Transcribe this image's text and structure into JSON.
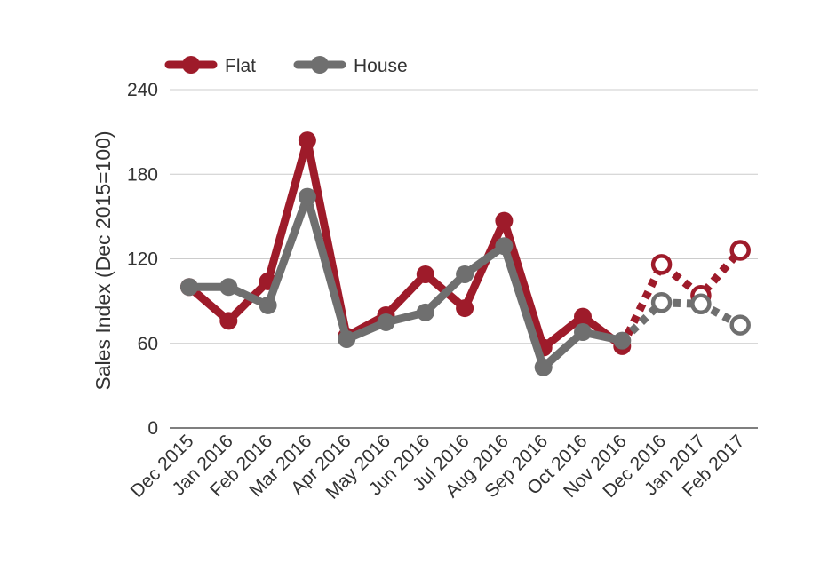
{
  "chart_data": {
    "type": "line",
    "ylabel": "Sales Index (Dec 2015=100)",
    "xlabel": "",
    "ylim": [
      0,
      240
    ],
    "yticks": [
      0,
      60,
      120,
      180,
      240
    ],
    "categories": [
      "Dec 2015",
      "Jan 2016",
      "Feb 2016",
      "Mar 2016",
      "Apr 2016",
      "May 2016",
      "Jun 2016",
      "Jul 2016",
      "Aug 2016",
      "Sep 2016",
      "Oct 2016",
      "Nov 2016",
      "Dec 2016",
      "Jan 2017",
      "Feb 2017"
    ],
    "forecast_start_index": 11,
    "grid": true,
    "legend_position": "top-left",
    "series": [
      {
        "name": "Flat",
        "color": "#9e1b2a",
        "values": [
          100,
          76,
          104,
          204,
          65,
          80,
          109,
          85,
          147,
          57,
          79,
          58,
          116,
          94,
          126
        ]
      },
      {
        "name": "House",
        "color": "#6f6f6f",
        "values": [
          100,
          100,
          87,
          164,
          63,
          75,
          82,
          109,
          129,
          43,
          68,
          62,
          89,
          88,
          73
        ]
      }
    ]
  }
}
